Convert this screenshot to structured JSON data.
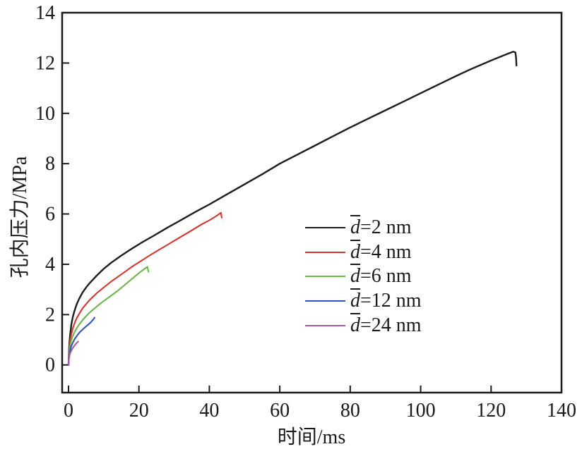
{
  "figure": {
    "background": "#ffffff",
    "axis_color": "#1a1a1a",
    "tick_label_color": "#1a1a1a"
  },
  "chart_data": {
    "type": "line",
    "title": "",
    "xlabel": "时间/ms",
    "ylabel": "孔内压力/MPa",
    "x_ticks": [
      0,
      20,
      40,
      60,
      80,
      100,
      120,
      140
    ],
    "y_ticks": [
      0,
      2,
      4,
      6,
      8,
      10,
      12,
      14
    ],
    "xlim": [
      0,
      140
    ],
    "ylim": [
      0,
      14
    ],
    "frame_xlim": [
      -1.8,
      140
    ],
    "frame_ylim": [
      -1.1,
      14
    ],
    "grid": false,
    "legend_position": "inside-center-right",
    "series": [
      {
        "name": "d=2 nm",
        "label_d": "d",
        "label_rest": "=2 nm",
        "color": "#1d1d1d",
        "line_width": 2.4,
        "points": [
          [
            0,
            0
          ],
          [
            0.15,
            0.6
          ],
          [
            0.3,
            0.95
          ],
          [
            0.5,
            1.25
          ],
          [
            0.8,
            1.6
          ],
          [
            1.2,
            1.9
          ],
          [
            1.7,
            2.15
          ],
          [
            2.3,
            2.4
          ],
          [
            3,
            2.62
          ],
          [
            4,
            2.88
          ],
          [
            5,
            3.08
          ],
          [
            6,
            3.25
          ],
          [
            8,
            3.55
          ],
          [
            10,
            3.82
          ],
          [
            12,
            4.05
          ],
          [
            15,
            4.35
          ],
          [
            18,
            4.62
          ],
          [
            21,
            4.88
          ],
          [
            24,
            5.12
          ],
          [
            28,
            5.45
          ],
          [
            32,
            5.76
          ],
          [
            36,
            6.08
          ],
          [
            40,
            6.38
          ],
          [
            45,
            6.78
          ],
          [
            50,
            7.18
          ],
          [
            55,
            7.58
          ],
          [
            60,
            8.0
          ],
          [
            65,
            8.36
          ],
          [
            70,
            8.72
          ],
          [
            75,
            9.08
          ],
          [
            80,
            9.44
          ],
          [
            85,
            9.78
          ],
          [
            90,
            10.12
          ],
          [
            95,
            10.46
          ],
          [
            100,
            10.8
          ],
          [
            105,
            11.14
          ],
          [
            110,
            11.48
          ],
          [
            114,
            11.74
          ],
          [
            118,
            11.98
          ],
          [
            121,
            12.16
          ],
          [
            123,
            12.27
          ],
          [
            125,
            12.38
          ],
          [
            126.3,
            12.45
          ],
          [
            126.9,
            12.42
          ],
          [
            127.1,
            12.2
          ],
          [
            127.2,
            11.9
          ]
        ]
      },
      {
        "name": "d=4 nm",
        "label_d": "d",
        "label_rest": "=4 nm",
        "color": "#d6362e",
        "line_width": 2.1,
        "points": [
          [
            0,
            0
          ],
          [
            0.15,
            0.5
          ],
          [
            0.3,
            0.78
          ],
          [
            0.5,
            1.0
          ],
          [
            0.8,
            1.22
          ],
          [
            1.2,
            1.45
          ],
          [
            1.7,
            1.65
          ],
          [
            2.3,
            1.85
          ],
          [
            3,
            2.02
          ],
          [
            4,
            2.25
          ],
          [
            5,
            2.42
          ],
          [
            6,
            2.58
          ],
          [
            8,
            2.85
          ],
          [
            10,
            3.08
          ],
          [
            12,
            3.3
          ],
          [
            14,
            3.5
          ],
          [
            16,
            3.7
          ],
          [
            18,
            3.9
          ],
          [
            20,
            4.08
          ],
          [
            23,
            4.35
          ],
          [
            26,
            4.6
          ],
          [
            29,
            4.85
          ],
          [
            32,
            5.1
          ],
          [
            35,
            5.35
          ],
          [
            38,
            5.6
          ],
          [
            40,
            5.75
          ],
          [
            42,
            5.92
          ],
          [
            43,
            6.02
          ],
          [
            43.3,
            6.05
          ],
          [
            43.5,
            5.85
          ]
        ]
      },
      {
        "name": "d=6 nm",
        "label_d": "d",
        "label_rest": "=6 nm",
        "color": "#6db64c",
        "line_width": 2.1,
        "points": [
          [
            0,
            0
          ],
          [
            0.15,
            0.4
          ],
          [
            0.3,
            0.62
          ],
          [
            0.5,
            0.8
          ],
          [
            0.8,
            0.98
          ],
          [
            1.2,
            1.15
          ],
          [
            1.7,
            1.3
          ],
          [
            2.3,
            1.45
          ],
          [
            3,
            1.6
          ],
          [
            4,
            1.78
          ],
          [
            5,
            1.94
          ],
          [
            6,
            2.08
          ],
          [
            7,
            2.2
          ],
          [
            8,
            2.32
          ],
          [
            9,
            2.43
          ],
          [
            10,
            2.54
          ],
          [
            12,
            2.74
          ],
          [
            14,
            2.95
          ],
          [
            16,
            3.18
          ],
          [
            18,
            3.42
          ],
          [
            20,
            3.65
          ],
          [
            21,
            3.76
          ],
          [
            22,
            3.86
          ],
          [
            22.4,
            3.9
          ],
          [
            22.7,
            3.7
          ]
        ]
      },
      {
        "name": "d=12 nm",
        "label_d": "d",
        "label_rest": "=12 nm",
        "color": "#2e55b8",
        "line_width": 2.1,
        "points": [
          [
            0,
            0
          ],
          [
            0.1,
            0.25
          ],
          [
            0.25,
            0.42
          ],
          [
            0.45,
            0.57
          ],
          [
            0.7,
            0.7
          ],
          [
            1,
            0.82
          ],
          [
            1.4,
            0.94
          ],
          [
            1.8,
            1.04
          ],
          [
            2.2,
            1.12
          ],
          [
            2.7,
            1.21
          ],
          [
            3.2,
            1.3
          ],
          [
            3.8,
            1.38
          ],
          [
            4.4,
            1.46
          ],
          [
            5,
            1.53
          ],
          [
            5.6,
            1.6
          ],
          [
            6.2,
            1.68
          ],
          [
            6.8,
            1.77
          ],
          [
            7.2,
            1.84
          ],
          [
            7.4,
            1.88
          ]
        ]
      },
      {
        "name": "d=24 nm",
        "label_d": "d",
        "label_rest": "=24 nm",
        "color": "#a55ba8",
        "line_width": 2.1,
        "points": [
          [
            0,
            0
          ],
          [
            0.08,
            0.18
          ],
          [
            0.2,
            0.3
          ],
          [
            0.35,
            0.4
          ],
          [
            0.55,
            0.49
          ],
          [
            0.8,
            0.57
          ],
          [
            1.1,
            0.65
          ],
          [
            1.4,
            0.71
          ],
          [
            1.7,
            0.77
          ],
          [
            2,
            0.82
          ],
          [
            2.3,
            0.87
          ],
          [
            2.6,
            0.91
          ],
          [
            2.75,
            0.93
          ]
        ]
      }
    ]
  }
}
